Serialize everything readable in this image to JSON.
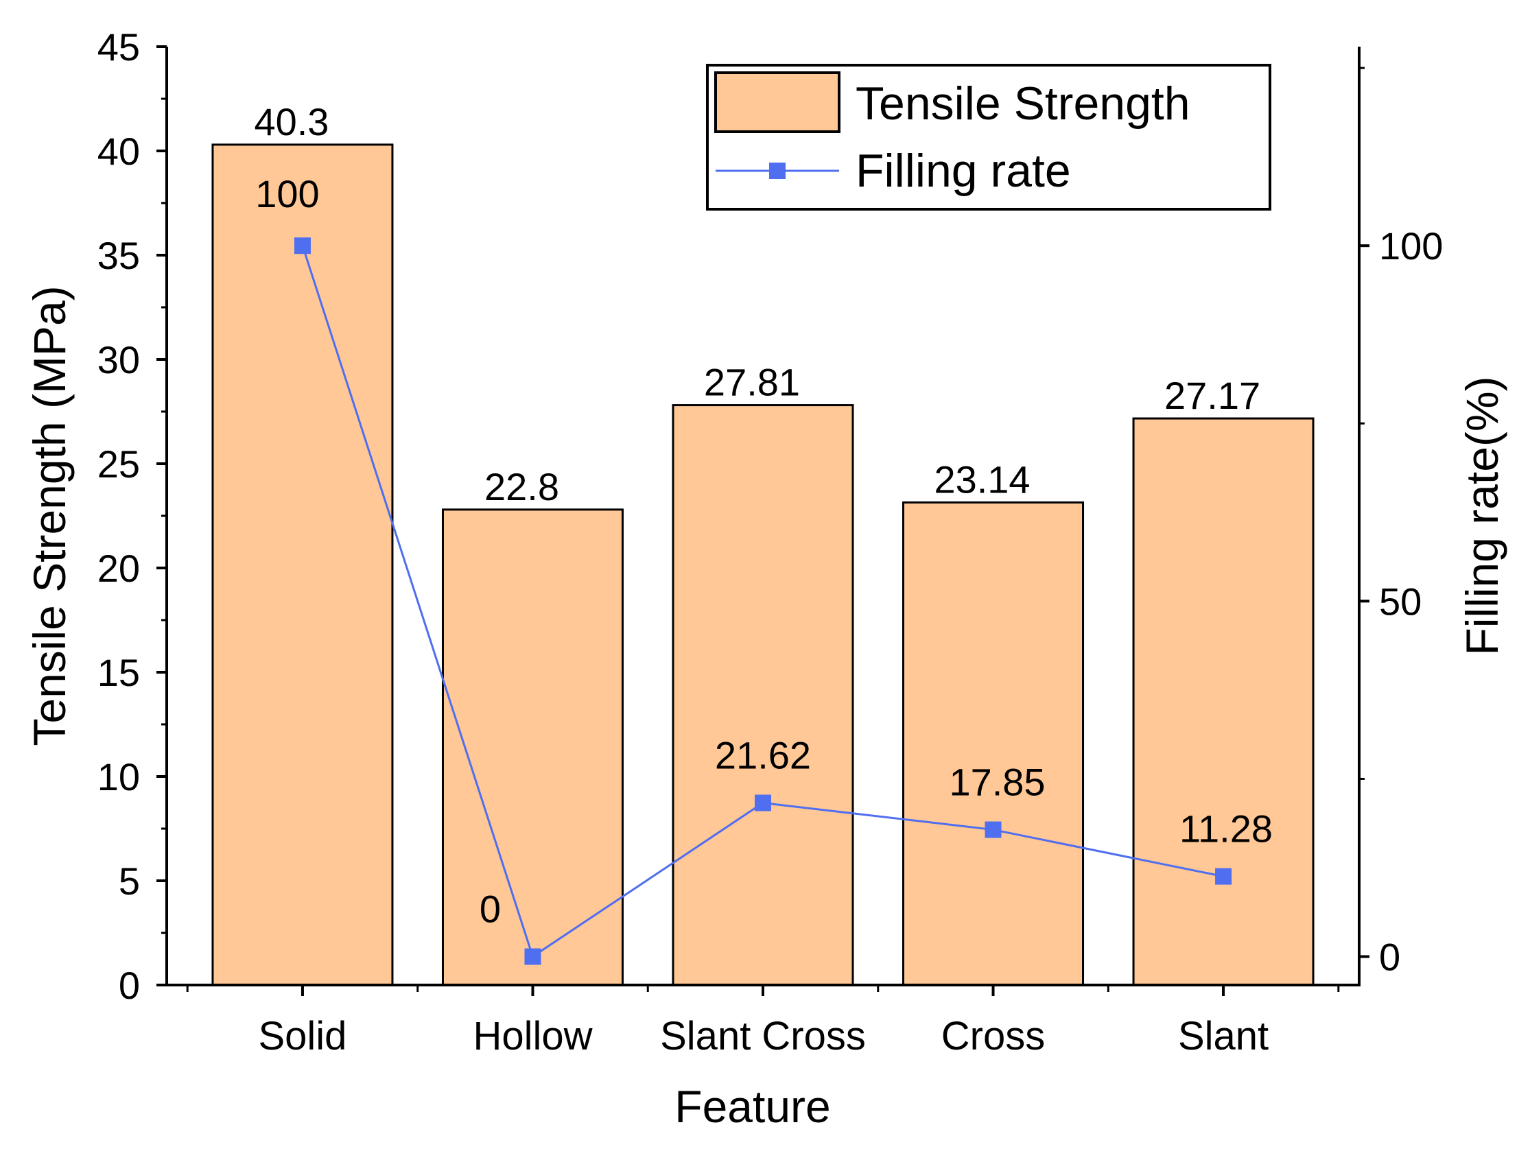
{
  "chart_data": {
    "type": "bar",
    "title": "",
    "xlabel": "Feature",
    "ylabel": "Tensile Strength (MPa)",
    "y2label": "Filling rate(%)",
    "categories": [
      "Solid",
      "Hollow",
      "Slant Cross",
      "Cross",
      "Slant"
    ],
    "ylim": [
      0,
      45
    ],
    "yticks": [
      0,
      5,
      10,
      15,
      20,
      25,
      30,
      35,
      40,
      45
    ],
    "y2lim": [
      -4,
      128
    ],
    "y2ticks": [
      0,
      50,
      100
    ],
    "grid": false,
    "legend_position": "top-right",
    "series": [
      {
        "name": "Tensile Strength",
        "type": "bar",
        "axis": "left",
        "color": "#FFC896",
        "values": [
          40.3,
          22.8,
          27.81,
          23.14,
          27.17
        ],
        "labels": [
          "40.3",
          "22.8",
          "27.81",
          "23.14",
          "27.17"
        ]
      },
      {
        "name": "Filling rate",
        "type": "line",
        "axis": "right",
        "color": "#4F6EF0",
        "values": [
          100,
          0,
          21.62,
          17.85,
          11.28
        ],
        "labels": [
          "100",
          "0",
          "21.62",
          "17.85",
          "11.28"
        ]
      }
    ]
  }
}
